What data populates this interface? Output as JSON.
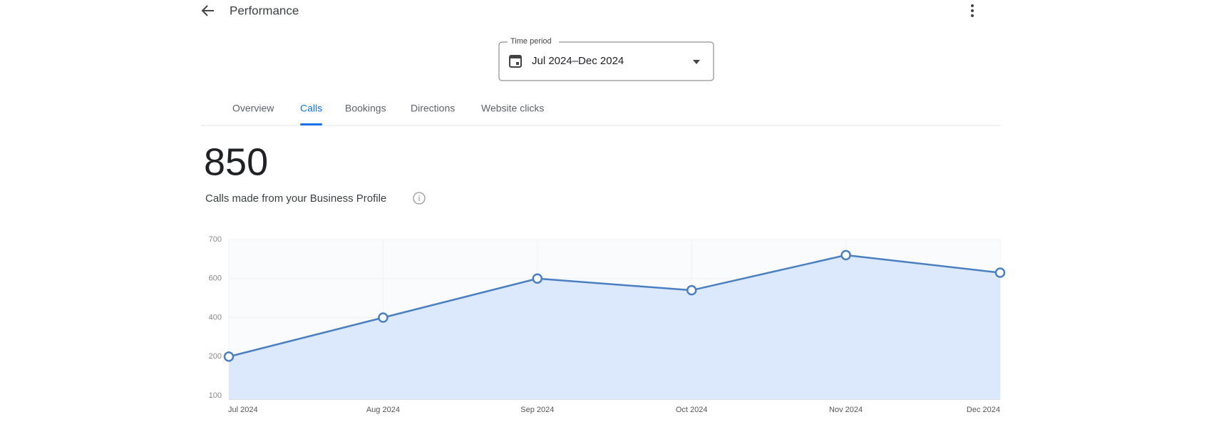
{
  "header": {
    "title": "Performance"
  },
  "time_period": {
    "label": "Time period",
    "value": "Jul 2024–Dec 2024"
  },
  "tabs": {
    "items": [
      "Overview",
      "Calls",
      "Bookings",
      "Directions",
      "Website clicks"
    ],
    "active": 1
  },
  "metric": {
    "value": 850,
    "caption": "Calls made from your Business Profile"
  },
  "chart_data": {
    "type": "area",
    "categories": [
      "Jul 2024",
      "Aug 2024",
      "Sep 2024",
      "Oct 2024",
      "Nov 2024",
      "Dec 2024"
    ],
    "series": [
      {
        "name": "Calls",
        "color": "#4a7fc1",
        "values": [
          200,
          400,
          600,
          540,
          660,
          615
        ]
      }
    ],
    "ylim": [
      100,
      700
    ],
    "yticks": [
      100,
      200,
      400,
      600,
      700
    ],
    "grid": true
  }
}
